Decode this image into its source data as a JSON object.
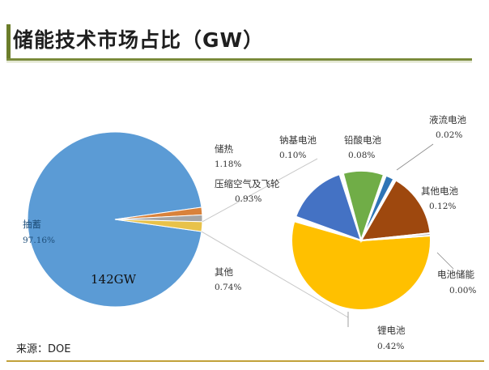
{
  "title": "储能技术市场占比（GW）",
  "source": "来源：DOE",
  "chart_data": [
    {
      "type": "pie",
      "slices": [
        {
          "name": "抽蓄",
          "value": 97.16,
          "label": "97.16%",
          "color": "#5b9bd5"
        },
        {
          "name": "储热",
          "value": 1.18,
          "label": "1.18%",
          "color": "#d9823b"
        },
        {
          "name": "压缩空气及飞轮",
          "value": 0.93,
          "label": "0.93%",
          "color": "#a5a5a5"
        },
        {
          "name": "其他",
          "value": 0.74,
          "label": "0.74%",
          "color": "#e8c24a"
        }
      ],
      "center_label": "142GW",
      "exploded_slice": "其他"
    },
    {
      "type": "pie",
      "slices": [
        {
          "name": "锂电池",
          "value": 0.42,
          "label": "0.42%",
          "color": "#ffc000"
        },
        {
          "name": "钠基电池",
          "value": 0.1,
          "label": "0.10%",
          "color": "#4472c4"
        },
        {
          "name": "铅酸电池",
          "value": 0.08,
          "label": "0.08%",
          "color": "#70ad47"
        },
        {
          "name": "液流电池",
          "value": 0.02,
          "label": "0.02%",
          "color": "#2e75b6"
        },
        {
          "name": "其他电池",
          "value": 0.12,
          "label": "0.12%",
          "color": "#9e480e"
        },
        {
          "name": "电池储能",
          "value": 0.0,
          "label": "0.00%",
          "color": "#a5a5a5"
        }
      ]
    }
  ]
}
